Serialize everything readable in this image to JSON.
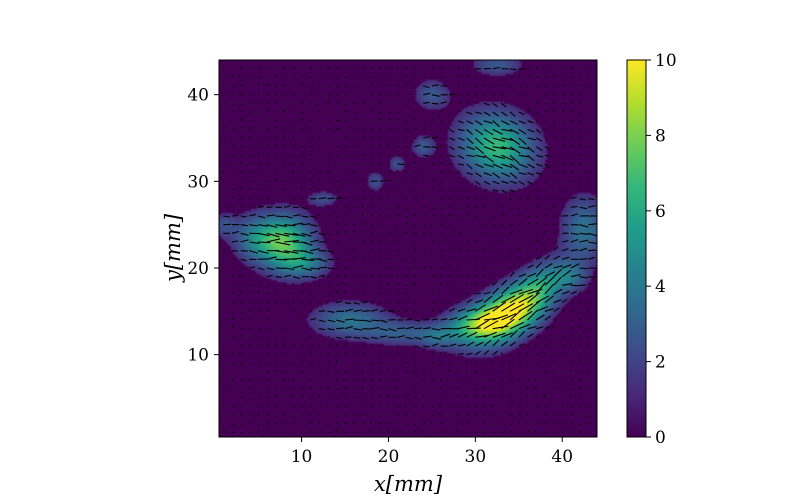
{
  "chart_data": {
    "type": "heatmap",
    "title": "",
    "xlabel": "x[mm]",
    "ylabel": "y[mm]",
    "xlim": [
      0.5,
      44
    ],
    "ylim": [
      0.5,
      44
    ],
    "xticks": [
      10,
      20,
      30,
      40
    ],
    "yticks": [
      10,
      20,
      30,
      40
    ],
    "grid": false,
    "colormap": "viridis",
    "colorbar": {
      "range": [
        0,
        10
      ],
      "ticks": [
        0,
        2,
        4,
        6,
        8,
        10
      ]
    },
    "quiver": {
      "spacing_mm": 1.0,
      "color": "#000000"
    },
    "regions": [
      {
        "x": 33.5,
        "y": 14.5,
        "sx": 3.2,
        "sy": 1.8,
        "angle": 30,
        "peak": 10
      },
      {
        "x": 37.5,
        "y": 18.0,
        "sx": 2.6,
        "sy": 1.6,
        "angle": 40,
        "peak": 4
      },
      {
        "x": 29.5,
        "y": 13.5,
        "sx": 2.5,
        "sy": 1.4,
        "angle": 10,
        "peak": 4
      },
      {
        "x": 32.5,
        "y": 34.0,
        "sx": 3.0,
        "sy": 2.6,
        "angle": -25,
        "peak": 6.5
      },
      {
        "x": 8.0,
        "y": 23.0,
        "sx": 2.2,
        "sy": 2.2,
        "angle": 0,
        "peak": 7
      },
      {
        "x": 4.5,
        "y": 23.5,
        "sx": 1.8,
        "sy": 1.8,
        "angle": 0,
        "peak": 3
      },
      {
        "x": 10.5,
        "y": 20.5,
        "sx": 2.0,
        "sy": 1.2,
        "angle": 0,
        "peak": 3
      },
      {
        "x": 42.5,
        "y": 24.5,
        "sx": 1.8,
        "sy": 2.6,
        "angle": 0,
        "peak": 3.5
      },
      {
        "x": 41.0,
        "y": 19.0,
        "sx": 1.4,
        "sy": 1.2,
        "angle": 0,
        "peak": 2.5
      },
      {
        "x": 15.5,
        "y": 14.0,
        "sx": 3.0,
        "sy": 1.4,
        "angle": 0,
        "peak": 3.5
      },
      {
        "x": 21.5,
        "y": 12.5,
        "sx": 2.8,
        "sy": 1.0,
        "angle": 0,
        "peak": 2.5
      },
      {
        "x": 25.5,
        "y": 12.0,
        "sx": 1.4,
        "sy": 0.9,
        "angle": 0,
        "peak": 2
      },
      {
        "x": 25.0,
        "y": 40.0,
        "sx": 1.4,
        "sy": 1.2,
        "angle": 0,
        "peak": 2.5
      },
      {
        "x": 24.0,
        "y": 34.0,
        "sx": 0.9,
        "sy": 0.9,
        "angle": 0,
        "peak": 2.5
      },
      {
        "x": 21.0,
        "y": 32.0,
        "sx": 0.7,
        "sy": 0.7,
        "angle": 0,
        "peak": 2.2
      },
      {
        "x": 18.5,
        "y": 30.0,
        "sx": 0.7,
        "sy": 0.8,
        "angle": 0,
        "peak": 2.2
      },
      {
        "x": 32.5,
        "y": 43.5,
        "sx": 2.0,
        "sy": 0.9,
        "angle": 0,
        "peak": 2.5
      },
      {
        "x": 12.5,
        "y": 28.0,
        "sx": 1.2,
        "sy": 0.6,
        "angle": 0,
        "peak": 2.2
      },
      {
        "x": 1.0,
        "y": 25.0,
        "sx": 1.0,
        "sy": 1.0,
        "angle": 0,
        "peak": 2
      }
    ]
  }
}
